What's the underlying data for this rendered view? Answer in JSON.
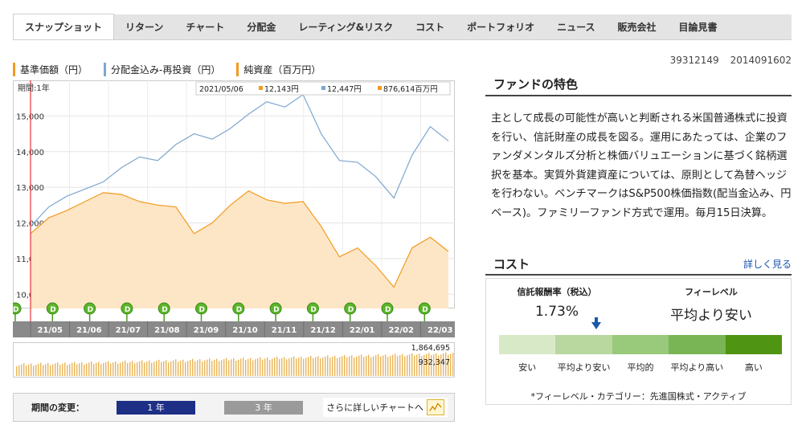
{
  "tabs": [
    {
      "label": "スナップショット",
      "active": true
    },
    {
      "label": "リターン"
    },
    {
      "label": "チャート"
    },
    {
      "label": "分配金"
    },
    {
      "label": "レーティング&リスク"
    },
    {
      "label": "コスト"
    },
    {
      "label": "ポートフォリオ"
    },
    {
      "label": "ニュース"
    },
    {
      "label": "販売会社"
    },
    {
      "label": "目論見書"
    }
  ],
  "legend": {
    "nav": "基準価額（円）",
    "reinvest": "分配金込み-再投資（円）",
    "net_assets": "純資産（百万円）"
  },
  "fund_ids": {
    "code1": "39312149",
    "code2": "2014091602"
  },
  "chart_data": {
    "type": "line",
    "period_label": "期間:1年",
    "tooltip": {
      "date": "2021/05/06",
      "nav": "12,143円",
      "reinvest": "12,447円",
      "net_assets": "876,614百万円"
    },
    "y_ticks": [
      "15,000",
      "14,000",
      "13,000",
      "12,000",
      "11,000",
      "10,000"
    ],
    "ylim": [
      9600,
      16000
    ],
    "x_ticks": [
      "21/05",
      "21/06",
      "21/07",
      "21/08",
      "21/09",
      "21/10",
      "21/11",
      "21/12",
      "22/01",
      "22/02",
      "22/03"
    ],
    "series": [
      {
        "name": "分配金込み-再投資（円）",
        "color": "#7ea7cf",
        "values": [
          11900,
          12447,
          12750,
          12950,
          13150,
          13550,
          13850,
          13750,
          14200,
          14500,
          14350,
          14650,
          15050,
          15400,
          15250,
          15600,
          14500,
          13750,
          13700,
          13300,
          12700,
          13900,
          14700,
          14300
        ]
      },
      {
        "name": "基準価額（円）",
        "color": "#f29a1f",
        "values": [
          11700,
          12143,
          12350,
          12600,
          12850,
          12800,
          12600,
          12500,
          12450,
          11700,
          12000,
          12500,
          12900,
          12650,
          12550,
          12600,
          11900,
          11050,
          11300,
          10800,
          10200,
          11300,
          11600,
          11200
        ]
      }
    ],
    "volume_labels": [
      "1,864,695",
      "932,347"
    ],
    "dividend_marker": "D"
  },
  "period": {
    "label": "期間の変更：",
    "btn_1y": "1 年",
    "btn_3y": "3 年",
    "more_chart": "さらに詳しいチャートへ"
  },
  "feature": {
    "title": "ファンドの特色",
    "text": "主として成長の可能性が高いと判断される米国普通株式に投資を行い、信託財産の成長を図る。運用にあたっては、企業のファンダメンタルズ分析と株価バリュエーションに基づく銘柄選択を基本。実質外貨建資産については、原則として為替ヘッジを行わない。ベンチマークはS&P500株価指数(配当金込み、円ベース)。ファミリーファンド方式で運用。毎月15日決算。"
  },
  "cost": {
    "title": "コスト",
    "more": "詳しく見る",
    "fee_label": "信託報酬率（税込）",
    "fee_value": "1.73%",
    "level_label": "フィーレベル",
    "level_value": "平均より安い",
    "scale": [
      "安い",
      "平均より安い",
      "平均的",
      "平均より高い",
      "高い"
    ],
    "scale_colors": [
      "#d8e9c8",
      "#b8d8a0",
      "#99c97a",
      "#79b554",
      "#4f9412"
    ],
    "note": "*フィーレベル・カテゴリー：先進国株式・アクティブ"
  }
}
